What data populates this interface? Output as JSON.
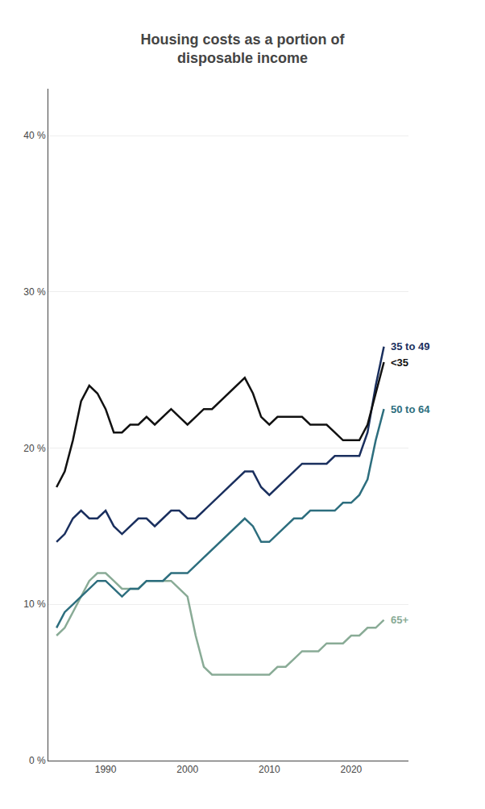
{
  "chart_data": {
    "type": "line",
    "title": "Housing costs as a portion of\ndisposable income",
    "x": [
      1984,
      1985,
      1986,
      1987,
      1988,
      1989,
      1990,
      1991,
      1992,
      1993,
      1994,
      1995,
      1996,
      1997,
      1998,
      1999,
      2000,
      2001,
      2002,
      2003,
      2004,
      2005,
      2006,
      2007,
      2008,
      2009,
      2010,
      2011,
      2012,
      2013,
      2014,
      2015,
      2016,
      2017,
      2018,
      2019,
      2020,
      2021,
      2022,
      2023,
      2024
    ],
    "series": [
      {
        "name": "65+",
        "color": "#89ab96",
        "values": [
          8.0,
          8.5,
          9.5,
          10.5,
          11.5,
          12.0,
          12.0,
          11.5,
          11.0,
          11.0,
          11.0,
          11.5,
          11.5,
          11.5,
          11.5,
          11.0,
          10.5,
          8.0,
          6.0,
          5.5,
          5.5,
          5.5,
          5.5,
          5.5,
          5.5,
          5.5,
          5.5,
          6.0,
          6.0,
          6.5,
          7.0,
          7.0,
          7.0,
          7.5,
          7.5,
          7.5,
          8.0,
          8.0,
          8.5,
          8.5,
          9.0
        ]
      },
      {
        "name": "50 to 64",
        "color": "#2d6e7e",
        "values": [
          8.5,
          9.5,
          10.0,
          10.5,
          11.0,
          11.5,
          11.5,
          11.0,
          10.5,
          11.0,
          11.0,
          11.5,
          11.5,
          11.5,
          12.0,
          12.0,
          12.0,
          12.5,
          13.0,
          13.5,
          14.0,
          14.5,
          15.0,
          15.5,
          15.0,
          14.0,
          14.0,
          14.5,
          15.0,
          15.5,
          15.5,
          16.0,
          16.0,
          16.0,
          16.0,
          16.5,
          16.5,
          17.0,
          18.0,
          20.5,
          22.5
        ]
      },
      {
        "name": "35 to 49",
        "color": "#1a2f5e",
        "values": [
          14.0,
          14.5,
          15.5,
          16.0,
          15.5,
          15.5,
          16.0,
          15.0,
          14.5,
          15.0,
          15.5,
          15.5,
          15.0,
          15.5,
          16.0,
          16.0,
          15.5,
          15.5,
          16.0,
          16.5,
          17.0,
          17.5,
          18.0,
          18.5,
          18.5,
          17.5,
          17.0,
          17.5,
          18.0,
          18.5,
          19.0,
          19.0,
          19.0,
          19.0,
          19.5,
          19.5,
          19.5,
          19.5,
          21.0,
          24.0,
          26.5
        ]
      },
      {
        "name": "<35",
        "color": "#111111",
        "values": [
          17.5,
          18.5,
          20.5,
          23.0,
          24.0,
          23.5,
          22.5,
          21.0,
          21.0,
          21.5,
          21.5,
          22.0,
          21.5,
          22.0,
          22.5,
          22.0,
          21.5,
          22.0,
          22.5,
          22.5,
          23.0,
          23.5,
          24.0,
          24.5,
          23.5,
          22.0,
          21.5,
          22.0,
          22.0,
          22.0,
          22.0,
          21.5,
          21.5,
          21.5,
          21.0,
          20.5,
          20.5,
          20.5,
          21.5,
          23.5,
          25.5
        ]
      }
    ],
    "xlim": [
      1983,
      2027
    ],
    "ylim": [
      0,
      43
    ],
    "xticks": [
      1990,
      2000,
      2010,
      2020
    ],
    "yticks": [
      {
        "value": 0,
        "label": "0 %"
      },
      {
        "value": 10,
        "label": "10 %"
      },
      {
        "value": 20,
        "label": "20 %"
      },
      {
        "value": 30,
        "label": "30 %"
      },
      {
        "value": 40,
        "label": "40 %"
      }
    ],
    "grid": true
  }
}
